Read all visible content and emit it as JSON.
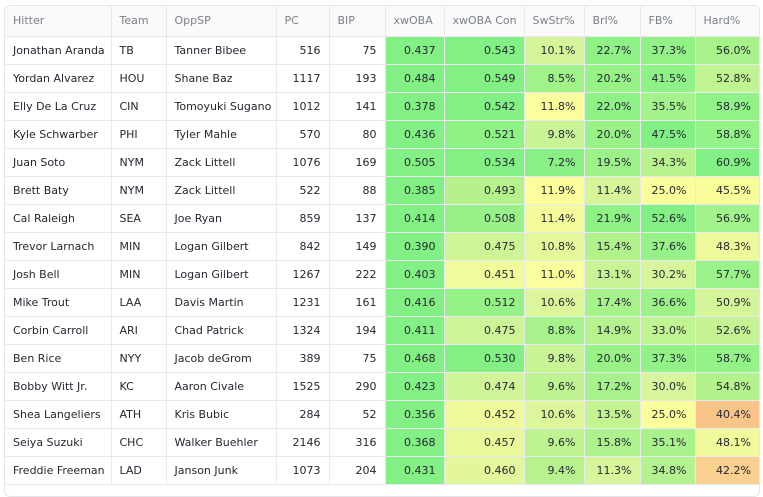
{
  "columns": [
    "Hitter",
    "Team",
    "OppSP",
    "PC",
    "BIP",
    "xwOBA",
    "xwOBA Con",
    "SwStr%",
    "Brl%",
    "FB%",
    "Hard%"
  ],
  "rows": [
    {
      "cells": [
        "Jonathan Aranda",
        "TB",
        "Tanner Bibee",
        "516",
        "75",
        "0.437",
        "0.543",
        "10.1%",
        "22.7%",
        "37.3%",
        "56.0%"
      ],
      "colors": [
        "#fff",
        "#fff",
        "#fff",
        "#fff",
        "#fff",
        "#83f085",
        "#83f085",
        "#d4f59a",
        "#8ef287",
        "#92f288",
        "#a8f28c"
      ]
    },
    {
      "cells": [
        "Yordan Alvarez",
        "HOU",
        "Shane Baz",
        "1117",
        "193",
        "0.484",
        "0.549",
        "8.5%",
        "20.2%",
        "41.5%",
        "52.8%"
      ],
      "colors": [
        "#fff",
        "#fff",
        "#fff",
        "#fff",
        "#fff",
        "#83f085",
        "#83f085",
        "#a2f28b",
        "#97f288",
        "#8ef287",
        "#c0f391"
      ]
    },
    {
      "cells": [
        "Elly De La Cruz",
        "CIN",
        "Tomoyuki Sugano",
        "1012",
        "141",
        "0.378",
        "0.542",
        "11.8%",
        "22.0%",
        "35.5%",
        "58.9%"
      ],
      "colors": [
        "#fff",
        "#fff",
        "#fff",
        "#fff",
        "#fff",
        "#83f085",
        "#83f085",
        "#fbfe9c",
        "#8ef287",
        "#a4f28b",
        "#91f287"
      ]
    },
    {
      "cells": [
        "Kyle Schwarber",
        "PHI",
        "Tyler Mahle",
        "570",
        "80",
        "0.436",
        "0.521",
        "9.8%",
        "20.0%",
        "47.5%",
        "58.8%"
      ],
      "colors": [
        "#fff",
        "#fff",
        "#fff",
        "#fff",
        "#fff",
        "#83f085",
        "#8ef287",
        "#c9f496",
        "#98f288",
        "#83f085",
        "#93f288"
      ]
    },
    {
      "cells": [
        "Juan Soto",
        "NYM",
        "Zack Littell",
        "1076",
        "169",
        "0.505",
        "0.534",
        "7.2%",
        "19.5%",
        "34.3%",
        "60.9%"
      ],
      "colors": [
        "#fff",
        "#fff",
        "#fff",
        "#fff",
        "#fff",
        "#83f085",
        "#83f085",
        "#8af086",
        "#9cf289",
        "#b9f38f",
        "#83f085"
      ]
    },
    {
      "cells": [
        "Brett Baty",
        "NYM",
        "Zack Littell",
        "522",
        "88",
        "0.385",
        "0.493",
        "11.9%",
        "11.4%",
        "25.0%",
        "45.5%"
      ],
      "colors": [
        "#fff",
        "#fff",
        "#fff",
        "#fff",
        "#fff",
        "#83f085",
        "#b5f28d",
        "#fdfd9c",
        "#d6f59a",
        "#fafe9c",
        "#f8fd9a"
      ]
    },
    {
      "cells": [
        "Cal Raleigh",
        "SEA",
        "Joe Ryan",
        "859",
        "137",
        "0.414",
        "0.508",
        "11.4%",
        "21.9%",
        "52.6%",
        "56.9%"
      ],
      "colors": [
        "#fff",
        "#fff",
        "#fff",
        "#fff",
        "#fff",
        "#83f085",
        "#99f289",
        "#f4fb9a",
        "#8ef287",
        "#83f085",
        "#a1f28b"
      ]
    },
    {
      "cells": [
        "Trevor Larnach",
        "MIN",
        "Logan Gilbert",
        "842",
        "149",
        "0.390",
        "0.475",
        "10.8%",
        "15.4%",
        "37.6%",
        "48.3%"
      ],
      "colors": [
        "#fff",
        "#fff",
        "#fff",
        "#fff",
        "#fff",
        "#83f085",
        "#cdf597",
        "#e4f89b",
        "#b1f28d",
        "#96f288",
        "#edf99b"
      ]
    },
    {
      "cells": [
        "Josh Bell",
        "MIN",
        "Logan Gilbert",
        "1267",
        "222",
        "0.403",
        "0.451",
        "11.0%",
        "13.1%",
        "30.2%",
        "57.7%"
      ],
      "colors": [
        "#fff",
        "#fff",
        "#fff",
        "#fff",
        "#fff",
        "#83f085",
        "#f0fb9b",
        "#fbfe9c",
        "#c9f496",
        "#d7f69b",
        "#9bf28a"
      ]
    },
    {
      "cells": [
        "Mike Trout",
        "LAA",
        "Davis Martin",
        "1231",
        "161",
        "0.416",
        "0.512",
        "10.6%",
        "17.4%",
        "36.6%",
        "50.9%"
      ],
      "colors": [
        "#fff",
        "#fff",
        "#fff",
        "#fff",
        "#fff",
        "#83f085",
        "#96f288",
        "#dbf69b",
        "#a6f28b",
        "#9cf289",
        "#d4f59a"
      ]
    },
    {
      "cells": [
        "Corbin Carroll",
        "ARI",
        "Chad Patrick",
        "1324",
        "194",
        "0.411",
        "0.475",
        "8.8%",
        "14.9%",
        "33.0%",
        "52.6%"
      ],
      "colors": [
        "#fff",
        "#fff",
        "#fff",
        "#fff",
        "#fff",
        "#83f085",
        "#cdf597",
        "#a8f28c",
        "#b6f28e",
        "#c0f391",
        "#c5f393"
      ]
    },
    {
      "cells": [
        "Ben Rice",
        "NYY",
        "Jacob deGrom",
        "389",
        "75",
        "0.468",
        "0.530",
        "9.8%",
        "20.0%",
        "37.3%",
        "58.7%"
      ],
      "colors": [
        "#fff",
        "#fff",
        "#fff",
        "#fff",
        "#fff",
        "#83f085",
        "#83f085",
        "#c9f496",
        "#98f288",
        "#92f288",
        "#93f288"
      ]
    },
    {
      "cells": [
        "Bobby Witt Jr.",
        "KC",
        "Aaron Civale",
        "1525",
        "290",
        "0.423",
        "0.474",
        "9.6%",
        "17.2%",
        "30.0%",
        "54.8%"
      ],
      "colors": [
        "#fff",
        "#fff",
        "#fff",
        "#fff",
        "#fff",
        "#83f085",
        "#d0f598",
        "#bff391",
        "#a7f28c",
        "#d8f69b",
        "#b4f28e"
      ]
    },
    {
      "cells": [
        "Shea Langeliers",
        "ATH",
        "Kris Bubic",
        "284",
        "52",
        "0.356",
        "0.452",
        "10.6%",
        "13.5%",
        "25.0%",
        "40.4%"
      ],
      "colors": [
        "#fff",
        "#fff",
        "#fff",
        "#fff",
        "#fff",
        "#83f085",
        "#eefa9b",
        "#dbf69b",
        "#c4f393",
        "#fafe9c",
        "#f8c488"
      ]
    },
    {
      "cells": [
        "Seiya Suzuki",
        "CHC",
        "Walker Buehler",
        "2146",
        "316",
        "0.368",
        "0.457",
        "9.6%",
        "15.8%",
        "35.1%",
        "48.1%"
      ],
      "colors": [
        "#fff",
        "#fff",
        "#fff",
        "#fff",
        "#fff",
        "#83f085",
        "#e7f99b",
        "#bff391",
        "#adf28c",
        "#aaf28c",
        "#f1fa9b"
      ]
    },
    {
      "cells": [
        "Freddie Freeman",
        "LAD",
        "Janson Junk",
        "1073",
        "204",
        "0.431",
        "0.460",
        "9.4%",
        "11.3%",
        "34.8%",
        "42.2%"
      ],
      "colors": [
        "#fff",
        "#fff",
        "#fff",
        "#fff",
        "#fff",
        "#83f085",
        "#e2f79b",
        "#b8f28f",
        "#d7f69b",
        "#b3f28e",
        "#f9d08f"
      ]
    }
  ]
}
